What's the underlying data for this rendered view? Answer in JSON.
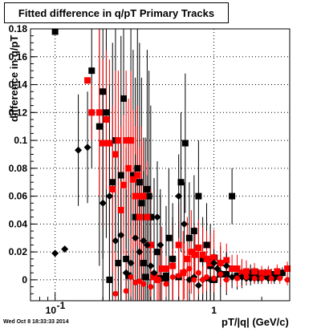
{
  "title": "Fitted difference in q/pT  Primary Tracks",
  "timestamp": "Wed Oct  8 18:33:33 2014",
  "chart_data": {
    "type": "scatter",
    "title": "Fitted difference in q/pT  Primary Tracks",
    "xlabel": "pT/|q| (GeV/c)",
    "ylabel": "difference in q/pT",
    "x_scale": "log",
    "xlim": [
      0.07,
      3.0
    ],
    "ylim": [
      -0.015,
      0.18
    ],
    "x_tick_labels": [
      "10^-1",
      "1"
    ],
    "y_ticks": [
      0,
      0.02,
      0.04,
      0.06,
      0.08,
      0.1,
      0.12,
      0.14,
      0.16,
      0.18
    ],
    "grid": true,
    "series": [
      {
        "color": "#000000",
        "marker": "square",
        "points": [
          [
            0.1,
            0.178,
            0.0,
            0.0
          ],
          [
            0.17,
            0.15,
            0.07,
            0.08
          ],
          [
            0.19,
            0.11,
            0.1,
            0.1
          ],
          [
            0.2,
            0.135,
            0.12,
            0.12
          ],
          [
            0.21,
            0.12,
            0.09,
            0.1
          ],
          [
            0.22,
            0.0,
            0.1,
            0.1
          ],
          [
            0.23,
            0.07,
            0.1,
            0.1
          ],
          [
            0.24,
            0.1,
            0.08,
            0.08
          ],
          [
            0.25,
            0.012,
            0.09,
            0.09
          ],
          [
            0.26,
            0.075,
            0.1,
            0.1
          ],
          [
            0.27,
            0.13,
            0.09,
            0.09
          ],
          [
            0.28,
            0.015,
            0.08,
            0.08
          ],
          [
            0.29,
            0.003,
            0.1,
            0.1
          ],
          [
            0.3,
            0.1,
            0.08,
            0.08
          ],
          [
            0.31,
            0.075,
            0.09,
            0.09
          ],
          [
            0.32,
            0.045,
            0.1,
            0.1
          ],
          [
            0.33,
            0.08,
            0.1,
            0.1
          ],
          [
            0.34,
            0.07,
            0.1,
            0.1
          ],
          [
            0.35,
            0.055,
            0.09,
            0.09
          ],
          [
            0.36,
            0.012,
            0.09,
            0.09
          ],
          [
            0.37,
            0.002,
            0.1,
            0.1
          ],
          [
            0.38,
            0.065,
            0.1,
            0.1
          ],
          [
            0.39,
            0.06,
            0.09,
            0.09
          ],
          [
            0.4,
            0.045,
            0.08,
            0.08
          ],
          [
            0.42,
            0.003,
            0.07,
            0.07
          ],
          [
            0.44,
            0.02,
            0.06,
            0.06
          ],
          [
            0.46,
            0.001,
            0.06,
            0.06
          ],
          [
            0.5,
            0.003,
            0.05,
            0.05
          ],
          [
            0.52,
            0.03,
            0.05,
            0.05
          ],
          [
            0.55,
            0.015,
            0.04,
            0.04
          ],
          [
            0.6,
            0.002,
            0.04,
            0.04
          ],
          [
            0.62,
            0.07,
            0.05,
            0.05
          ],
          [
            0.66,
            0.098,
            0.05,
            0.05
          ],
          [
            0.7,
            0.03,
            0.04,
            0.04
          ],
          [
            0.75,
            0.035,
            0.04,
            0.04
          ],
          [
            0.8,
            0.06,
            0.04,
            0.04
          ],
          [
            0.85,
            0.015,
            0.03,
            0.03
          ],
          [
            0.9,
            0.025,
            0.03,
            0.03
          ],
          [
            0.95,
            0.01,
            0.03,
            0.03
          ],
          [
            1.0,
            0.0,
            0.02,
            0.02
          ],
          [
            1.1,
            0.004,
            0.02,
            0.02
          ],
          [
            1.2,
            0.004,
            0.015,
            0.015
          ],
          [
            1.3,
            0.06,
            0.02,
            0.02
          ],
          [
            1.4,
            0.003,
            0.01,
            0.01
          ],
          [
            1.5,
            0.004,
            0.01,
            0.01
          ],
          [
            1.6,
            0.005,
            0.008,
            0.008
          ],
          [
            1.7,
            0.005,
            0.006,
            0.006
          ],
          [
            1.8,
            0.004,
            0.005,
            0.005
          ],
          [
            1.9,
            0.004,
            0.004,
            0.004
          ],
          [
            2.0,
            0.004,
            0.004,
            0.004
          ],
          [
            2.1,
            0.004,
            0.004,
            0.004
          ],
          [
            2.2,
            0.005,
            0.004,
            0.004
          ],
          [
            2.3,
            0.004,
            0.004,
            0.004
          ],
          [
            2.5,
            0.004,
            0.004,
            0.004
          ],
          [
            2.7,
            0.005,
            0.004,
            0.004
          ]
        ]
      },
      {
        "color": "#ff0000",
        "marker": "square",
        "points": [
          [
            0.16,
            0.143,
            0.0,
            0.0
          ],
          [
            0.17,
            0.12,
            0.02,
            0.02
          ],
          [
            0.19,
            0.12,
            0.06,
            0.06
          ],
          [
            0.2,
            0.098,
            0.06,
            0.06
          ],
          [
            0.21,
            0.115,
            0.05,
            0.05
          ],
          [
            0.22,
            0.098,
            0.06,
            0.06
          ],
          [
            0.23,
            0.065,
            0.06,
            0.06
          ],
          [
            0.24,
            0.09,
            0.06,
            0.06
          ],
          [
            0.25,
            0.1,
            0.05,
            0.05
          ],
          [
            0.26,
            0.05,
            0.06,
            0.06
          ],
          [
            0.27,
            0.068,
            0.05,
            0.05
          ],
          [
            0.28,
            0.1,
            0.05,
            0.05
          ],
          [
            0.29,
            0.08,
            0.05,
            0.05
          ],
          [
            0.3,
            0.1,
            0.05,
            0.05
          ],
          [
            0.31,
            0.072,
            0.05,
            0.05
          ],
          [
            0.32,
            0.06,
            0.05,
            0.05
          ],
          [
            0.33,
            0.075,
            0.05,
            0.05
          ],
          [
            0.34,
            0.045,
            0.05,
            0.05
          ],
          [
            0.35,
            0.06,
            0.05,
            0.05
          ],
          [
            0.36,
            0.06,
            0.04,
            0.04
          ],
          [
            0.38,
            0.045,
            0.04,
            0.04
          ],
          [
            0.4,
            0.025,
            0.04,
            0.04
          ],
          [
            0.42,
            0.002,
            0.04,
            0.04
          ],
          [
            0.44,
            0.0,
            0.04,
            0.04
          ],
          [
            0.47,
            0.008,
            0.03,
            0.03
          ],
          [
            0.5,
            0.008,
            0.03,
            0.03
          ],
          [
            0.55,
            0.01,
            0.03,
            0.03
          ],
          [
            0.6,
            0.025,
            0.03,
            0.03
          ],
          [
            0.64,
            0.005,
            0.03,
            0.03
          ],
          [
            0.68,
            0.015,
            0.03,
            0.03
          ],
          [
            0.72,
            0.02,
            0.03,
            0.03
          ],
          [
            0.76,
            0.018,
            0.02,
            0.02
          ],
          [
            0.8,
            0.023,
            0.02,
            0.02
          ],
          [
            0.85,
            0.018,
            0.02,
            0.02
          ],
          [
            0.9,
            0.015,
            0.02,
            0.02
          ],
          [
            0.95,
            0.012,
            0.02,
            0.02
          ],
          [
            1.0,
            0.016,
            0.02,
            0.02
          ],
          [
            1.1,
            0.012,
            0.015,
            0.015
          ],
          [
            1.2,
            0.014,
            0.012,
            0.012
          ],
          [
            1.3,
            0.008,
            0.01,
            0.01
          ],
          [
            1.4,
            0.008,
            0.01,
            0.01
          ],
          [
            1.5,
            0.005,
            0.01,
            0.01
          ],
          [
            1.6,
            0.006,
            0.008,
            0.008
          ],
          [
            1.8,
            0.006,
            0.006,
            0.006
          ],
          [
            2.0,
            0.005,
            0.005,
            0.005
          ],
          [
            2.2,
            0.005,
            0.005,
            0.005
          ],
          [
            2.5,
            0.006,
            0.005,
            0.005
          ],
          [
            2.9,
            0.008,
            0.005,
            0.005
          ]
        ]
      },
      {
        "color": "#000000",
        "marker": "diamond",
        "points": [
          [
            0.1,
            0.019,
            0.0,
            0.0
          ],
          [
            0.115,
            0.022,
            0.0,
            0.0
          ],
          [
            0.14,
            0.093,
            0.04,
            0.04
          ],
          [
            0.16,
            0.095,
            0.04,
            0.04
          ],
          [
            0.2,
            0.055,
            0.08,
            0.08
          ],
          [
            0.22,
            0.06,
            0.08,
            0.08
          ],
          [
            0.24,
            0.028,
            0.07,
            0.07
          ],
          [
            0.26,
            0.032,
            0.07,
            0.07
          ],
          [
            0.28,
            0.005,
            0.06,
            0.06
          ],
          [
            0.3,
            0.012,
            0.06,
            0.06
          ],
          [
            0.32,
            0.03,
            0.06,
            0.06
          ],
          [
            0.34,
            0.02,
            0.05,
            0.05
          ],
          [
            0.36,
            0.028,
            0.05,
            0.05
          ],
          [
            0.38,
            0.025,
            0.05,
            0.05
          ],
          [
            0.4,
            0.01,
            0.05,
            0.05
          ],
          [
            0.42,
            0.005,
            0.04,
            0.04
          ],
          [
            0.44,
            0.045,
            0.04,
            0.04
          ],
          [
            0.46,
            0.025,
            0.04,
            0.04
          ],
          [
            0.5,
            0.0,
            0.04,
            0.04
          ],
          [
            0.55,
            0.015,
            0.03,
            0.03
          ],
          [
            0.6,
            0.06,
            0.03,
            0.03
          ],
          [
            0.65,
            0.04,
            0.03,
            0.03
          ],
          [
            0.7,
            0.0,
            0.02,
            0.02
          ],
          [
            0.75,
            0.002,
            0.02,
            0.02
          ],
          [
            0.8,
            -0.004,
            0.02,
            0.02
          ],
          [
            0.85,
            0.0,
            0.015,
            0.015
          ],
          [
            0.9,
            0.001,
            0.015,
            0.015
          ],
          [
            0.95,
            0.0,
            0.015,
            0.015
          ],
          [
            1.0,
            0.012,
            0.01,
            0.01
          ],
          [
            1.05,
            0.008,
            0.01,
            0.01
          ],
          [
            1.1,
            0.005,
            0.01,
            0.01
          ],
          [
            1.2,
            0.01,
            0.01,
            0.01
          ],
          [
            1.3,
            0.002,
            0.008,
            0.008
          ],
          [
            1.4,
            0.002,
            0.006,
            0.006
          ],
          [
            1.5,
            0.002,
            0.006,
            0.006
          ],
          [
            1.6,
            0.001,
            0.005,
            0.005
          ],
          [
            1.7,
            0.001,
            0.005,
            0.005
          ],
          [
            1.8,
            0.001,
            0.004,
            0.004
          ],
          [
            1.9,
            0.001,
            0.004,
            0.004
          ],
          [
            2.0,
            0.001,
            0.004,
            0.004
          ],
          [
            2.2,
            0.001,
            0.004,
            0.004
          ],
          [
            2.4,
            0.001,
            0.004,
            0.004
          ]
        ]
      },
      {
        "color": "#ff0000",
        "marker": "circle",
        "points": [
          [
            0.24,
            -0.01,
            0.03,
            0.03
          ],
          [
            0.28,
            -0.008,
            0.03,
            0.03
          ],
          [
            0.3,
            0.002,
            0.03,
            0.03
          ],
          [
            0.32,
            -0.002,
            0.03,
            0.03
          ],
          [
            0.34,
            -0.001,
            0.03,
            0.03
          ],
          [
            0.36,
            -0.003,
            0.03,
            0.03
          ],
          [
            0.4,
            -0.005,
            0.03,
            0.03
          ],
          [
            0.45,
            0.0,
            0.02,
            0.02
          ],
          [
            0.5,
            -0.003,
            0.02,
            0.02
          ],
          [
            0.55,
            0.002,
            0.02,
            0.02
          ],
          [
            0.6,
            0.003,
            0.02,
            0.02
          ],
          [
            0.65,
            0.006,
            0.02,
            0.02
          ],
          [
            0.7,
            0.008,
            0.015,
            0.015
          ],
          [
            0.75,
            0.0,
            0.015,
            0.015
          ],
          [
            0.8,
            0.005,
            0.015,
            0.015
          ],
          [
            0.85,
            0.0,
            0.01,
            0.01
          ],
          [
            0.9,
            0.002,
            0.01,
            0.01
          ],
          [
            1.0,
            0.001,
            0.01,
            0.01
          ],
          [
            1.1,
            0.004,
            0.008,
            0.008
          ],
          [
            1.2,
            0.0,
            0.008,
            0.008
          ],
          [
            1.4,
            0.001,
            0.006,
            0.006
          ],
          [
            1.6,
            0.002,
            0.005,
            0.005
          ],
          [
            1.8,
            0.001,
            0.004,
            0.004
          ],
          [
            2.0,
            0.001,
            0.004,
            0.004
          ],
          [
            2.3,
            0.001,
            0.004,
            0.004
          ],
          [
            2.6,
            0.001,
            0.004,
            0.004
          ],
          [
            2.9,
            0.0,
            0.004,
            0.004
          ]
        ]
      }
    ]
  }
}
